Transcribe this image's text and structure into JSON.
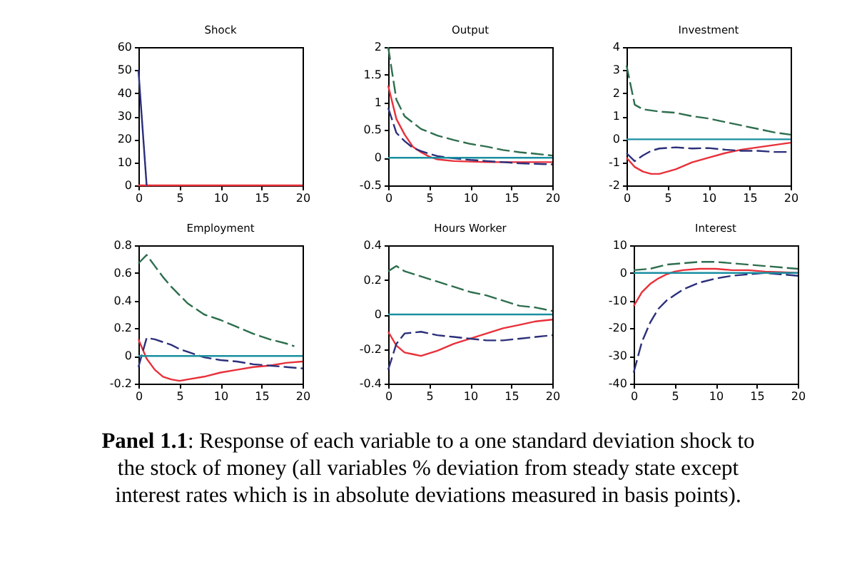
{
  "chart_data": [
    {
      "type": "line",
      "title": "Shock",
      "xlim": [
        0,
        20
      ],
      "xticks": [
        0,
        5,
        10,
        15,
        20
      ],
      "ylim": [
        0,
        60
      ],
      "yticks": [
        0,
        10,
        20,
        30,
        40,
        50,
        60
      ],
      "grid": false,
      "series": [
        {
          "color": "#e8303a",
          "line_style": "solid",
          "x": [
            0,
            1,
            5,
            10,
            15,
            20
          ],
          "values": [
            0,
            0,
            0,
            0,
            0,
            0
          ]
        },
        {
          "color": "#2b2f7a",
          "line_style": "solid",
          "x": [
            0,
            1
          ],
          "values": [
            50,
            0
          ]
        }
      ]
    },
    {
      "type": "line",
      "title": "Output",
      "xlim": [
        0,
        20
      ],
      "xticks": [
        0,
        5,
        10,
        15,
        20
      ],
      "ylim": [
        -0.5,
        2
      ],
      "yticks": [
        -0.5,
        0,
        0.5,
        1,
        1.5,
        2
      ],
      "grid": false,
      "ref_lines": [
        {
          "axis": "y",
          "value": 0,
          "color": "#1a8fa0"
        }
      ],
      "series": [
        {
          "color": "#2e6e4e",
          "line_style": "dashed",
          "x": [
            0,
            1,
            2,
            4,
            6,
            8,
            10,
            12,
            14,
            16,
            18,
            20
          ],
          "values": [
            2.0,
            1.05,
            0.75,
            0.52,
            0.4,
            0.32,
            0.25,
            0.2,
            0.14,
            0.1,
            0.07,
            0.04
          ]
        },
        {
          "color": "#e8303a",
          "line_style": "solid",
          "x": [
            0,
            1,
            2,
            3,
            4,
            5,
            6,
            8,
            10,
            12,
            14,
            16,
            18,
            20
          ],
          "values": [
            1.3,
            0.7,
            0.42,
            0.2,
            0.1,
            0.02,
            -0.03,
            -0.06,
            -0.07,
            -0.08,
            -0.08,
            -0.08,
            -0.08,
            -0.08
          ]
        },
        {
          "color": "#2b2f7a",
          "line_style": "dashed",
          "x": [
            0,
            1,
            2,
            3,
            4,
            5,
            6,
            8,
            10,
            12,
            14,
            16,
            18,
            20
          ],
          "values": [
            0.9,
            0.45,
            0.3,
            0.18,
            0.12,
            0.07,
            0.03,
            -0.01,
            -0.04,
            -0.06,
            -0.08,
            -0.1,
            -0.11,
            -0.12
          ]
        }
      ]
    },
    {
      "type": "line",
      "title": "Investment",
      "xlim": [
        0,
        20
      ],
      "xticks": [
        0,
        5,
        10,
        15,
        20
      ],
      "ylim": [
        -2,
        4
      ],
      "yticks": [
        -2,
        -1,
        0,
        1,
        2,
        3,
        4
      ],
      "grid": false,
      "ref_lines": [
        {
          "axis": "y",
          "value": 0,
          "color": "#1a8fa0"
        }
      ],
      "series": [
        {
          "color": "#2e6e4e",
          "line_style": "dashed",
          "x": [
            0,
            1,
            2,
            3,
            4,
            6,
            8,
            10,
            12,
            14,
            16,
            18,
            20
          ],
          "values": [
            3.2,
            1.5,
            1.3,
            1.25,
            1.2,
            1.15,
            1.0,
            0.9,
            0.75,
            0.6,
            0.45,
            0.3,
            0.2
          ]
        },
        {
          "color": "#e8303a",
          "line_style": "solid",
          "x": [
            0,
            1,
            2,
            3,
            4,
            6,
            8,
            10,
            12,
            14,
            16,
            18,
            20
          ],
          "values": [
            -0.8,
            -1.2,
            -1.4,
            -1.5,
            -1.5,
            -1.3,
            -1.0,
            -0.8,
            -0.6,
            -0.45,
            -0.35,
            -0.25,
            -0.15
          ]
        },
        {
          "color": "#2b2f7a",
          "line_style": "dashed",
          "x": [
            0,
            1,
            2,
            3,
            4,
            6,
            8,
            10,
            12,
            14,
            16,
            18,
            20
          ],
          "values": [
            -0.6,
            -0.95,
            -0.7,
            -0.5,
            -0.4,
            -0.35,
            -0.4,
            -0.38,
            -0.45,
            -0.5,
            -0.5,
            -0.55,
            -0.55
          ]
        }
      ]
    },
    {
      "type": "line",
      "title": "Employment",
      "xlim": [
        0,
        20
      ],
      "xticks": [
        0,
        5,
        10,
        15,
        20
      ],
      "ylim": [
        -0.2,
        0.8
      ],
      "yticks": [
        -0.2,
        0,
        0.2,
        0.4,
        0.6,
        0.8
      ],
      "grid": false,
      "ref_lines": [
        {
          "axis": "y",
          "value": 0,
          "color": "#1a8fa0"
        }
      ],
      "series": [
        {
          "color": "#2e6e4e",
          "line_style": "dashed",
          "x": [
            0,
            1,
            2,
            3,
            4,
            5,
            6,
            8,
            10,
            12,
            14,
            16,
            18,
            19
          ],
          "values": [
            0.67,
            0.73,
            0.65,
            0.57,
            0.5,
            0.44,
            0.38,
            0.3,
            0.26,
            0.21,
            0.16,
            0.12,
            0.09,
            0.07
          ]
        },
        {
          "color": "#e8303a",
          "line_style": "solid",
          "x": [
            0,
            1,
            2,
            3,
            4,
            5,
            6,
            8,
            10,
            12,
            14,
            16,
            18,
            20
          ],
          "values": [
            0.12,
            -0.02,
            -0.1,
            -0.15,
            -0.17,
            -0.18,
            -0.17,
            -0.15,
            -0.12,
            -0.1,
            -0.08,
            -0.07,
            -0.05,
            -0.04
          ]
        },
        {
          "color": "#2b2f7a",
          "line_style": "dashed",
          "x": [
            0,
            1,
            2,
            3,
            4,
            5,
            6,
            8,
            10,
            12,
            14,
            16,
            18,
            20
          ],
          "values": [
            -0.08,
            0.13,
            0.12,
            0.1,
            0.08,
            0.05,
            0.03,
            -0.01,
            -0.03,
            -0.04,
            -0.06,
            -0.07,
            -0.08,
            -0.09
          ]
        }
      ]
    },
    {
      "type": "line",
      "title": "Hours Worker",
      "xlim": [
        0,
        20
      ],
      "xticks": [
        0,
        5,
        10,
        15,
        20
      ],
      "ylim": [
        -0.4,
        0.4
      ],
      "yticks": [
        -0.4,
        -0.2,
        0,
        0.2,
        0.4
      ],
      "grid": false,
      "ref_lines": [
        {
          "axis": "y",
          "value": 0,
          "color": "#1a8fa0"
        }
      ],
      "series": [
        {
          "color": "#2e6e4e",
          "line_style": "dashed",
          "x": [
            0,
            1,
            2,
            4,
            6,
            8,
            10,
            12,
            14,
            16,
            18,
            20
          ],
          "values": [
            0.25,
            0.28,
            0.25,
            0.22,
            0.19,
            0.16,
            0.13,
            0.11,
            0.08,
            0.05,
            0.04,
            0.02
          ]
        },
        {
          "color": "#e8303a",
          "line_style": "solid",
          "x": [
            0,
            1,
            2,
            3,
            4,
            6,
            8,
            10,
            12,
            14,
            16,
            18,
            20
          ],
          "values": [
            -0.1,
            -0.18,
            -0.22,
            -0.23,
            -0.24,
            -0.21,
            -0.17,
            -0.14,
            -0.11,
            -0.08,
            -0.06,
            -0.04,
            -0.03
          ]
        },
        {
          "color": "#2b2f7a",
          "line_style": "dashed",
          "x": [
            0,
            1,
            2,
            4,
            6,
            8,
            10,
            12,
            14,
            16,
            18,
            20
          ],
          "values": [
            -0.32,
            -0.17,
            -0.11,
            -0.1,
            -0.12,
            -0.13,
            -0.14,
            -0.15,
            -0.15,
            -0.14,
            -0.13,
            -0.12
          ]
        }
      ]
    },
    {
      "type": "line",
      "title": "Interest",
      "xlim": [
        0,
        20
      ],
      "xticks": [
        0,
        5,
        10,
        15,
        20
      ],
      "ylim": [
        -40,
        10
      ],
      "yticks": [
        -40,
        -30,
        -20,
        -10,
        0,
        10
      ],
      "grid": false,
      "ref_lines": [
        {
          "axis": "y",
          "value": 0,
          "color": "#1a8fa0"
        }
      ],
      "annotations": [
        "Panel 1.1: Response of each variable to a one standard deviation shock to the stock of money (all variables % deviation from steady state except interest rates which is in absolute deviations measured in basis points)."
      ],
      "series": [
        {
          "color": "#2e6e4e",
          "line_style": "dashed",
          "x": [
            0,
            2,
            4,
            6,
            8,
            10,
            12,
            14,
            16,
            18,
            20
          ],
          "values": [
            1,
            1.5,
            3,
            3.5,
            4,
            4,
            3.5,
            3,
            2.5,
            2,
            1.5
          ]
        },
        {
          "color": "#e8303a",
          "line_style": "solid",
          "x": [
            0,
            1,
            2,
            3,
            4,
            5,
            6,
            8,
            10,
            12,
            14,
            16,
            18,
            20
          ],
          "values": [
            -12,
            -7,
            -4,
            -2,
            -0.5,
            0.5,
            1,
            1.5,
            1.5,
            1,
            1,
            0.5,
            0.3,
            0
          ]
        },
        {
          "color": "#2b2f7a",
          "line_style": "dashed",
          "x": [
            0,
            1,
            2,
            3,
            4,
            5,
            6,
            8,
            10,
            12,
            14,
            16,
            18,
            20
          ],
          "values": [
            -36,
            -25,
            -18,
            -13,
            -10,
            -8,
            -6,
            -3.5,
            -2,
            -1,
            -0.5,
            0,
            -0.5,
            -1
          ]
        }
      ]
    }
  ]
}
